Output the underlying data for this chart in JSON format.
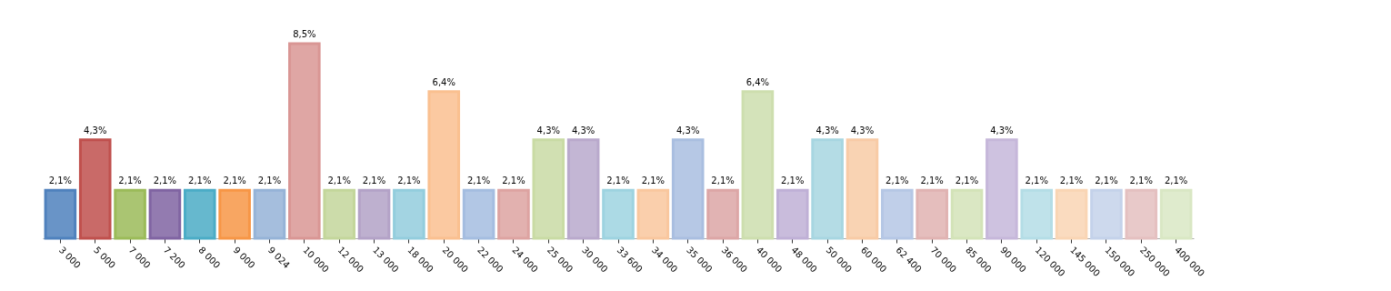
{
  "chart_data": {
    "type": "bar",
    "categories": [
      "3 000",
      "5 000",
      "7 000",
      "7 200",
      "8 000",
      "9 000",
      "9 024",
      "10 000",
      "12 000",
      "13 000",
      "18 000",
      "20 000",
      "22 000",
      "24 000",
      "25 000",
      "30 000",
      "33 600",
      "34 000",
      "35 000",
      "36 000",
      "40 000",
      "48 000",
      "50 000",
      "60 000",
      "62 400",
      "70 000",
      "85 000",
      "90 000",
      "120 000",
      "145 000",
      "150 000",
      "250 000",
      "400 000"
    ],
    "values": [
      2.1,
      4.3,
      2.1,
      2.1,
      2.1,
      2.1,
      2.1,
      8.5,
      2.1,
      2.1,
      2.1,
      6.4,
      2.1,
      2.1,
      4.3,
      4.3,
      2.1,
      2.1,
      4.3,
      2.1,
      6.4,
      2.1,
      4.3,
      4.3,
      2.1,
      2.1,
      2.1,
      4.3,
      2.1,
      2.1,
      2.1,
      2.1,
      2.1
    ],
    "value_labels": [
      "2,1%",
      "4,3%",
      "2,1%",
      "2,1%",
      "2,1%",
      "2,1%",
      "2,1%",
      "8,5%",
      "2,1%",
      "2,1%",
      "2,1%",
      "6,4%",
      "2,1%",
      "2,1%",
      "4,3%",
      "4,3%",
      "2,1%",
      "2,1%",
      "4,3%",
      "2,1%",
      "6,4%",
      "2,1%",
      "4,3%",
      "4,3%",
      "2,1%",
      "2,1%",
      "2,1%",
      "4,3%",
      "2,1%",
      "2,1%",
      "2,1%",
      "2,1%",
      "2,1%"
    ],
    "colors": [
      "#4f81bd",
      "#c0504d",
      "#9bbb59",
      "#8064a2",
      "#4bacc6",
      "#f79646",
      "#95b3d7",
      "#d99694",
      "#c3d69b",
      "#b3a2c7",
      "#93cddd",
      "#fac090",
      "#a4bde0",
      "#dda3a1",
      "#c9dba4",
      "#b9a9cc",
      "#9dd3e0",
      "#f9c79e",
      "#a9bee0",
      "#dca6a6",
      "#cddeae",
      "#bfb0d6",
      "#a7d6e1",
      "#f8cba6",
      "#b5c7e5",
      "#e0b3b2",
      "#d3e3b8",
      "#c6b7da",
      "#b4dde6",
      "#f9d5b4",
      "#c4d2ea",
      "#e4c0c0",
      "#d9e7c4"
    ],
    "legend": false,
    "grid": false
  }
}
